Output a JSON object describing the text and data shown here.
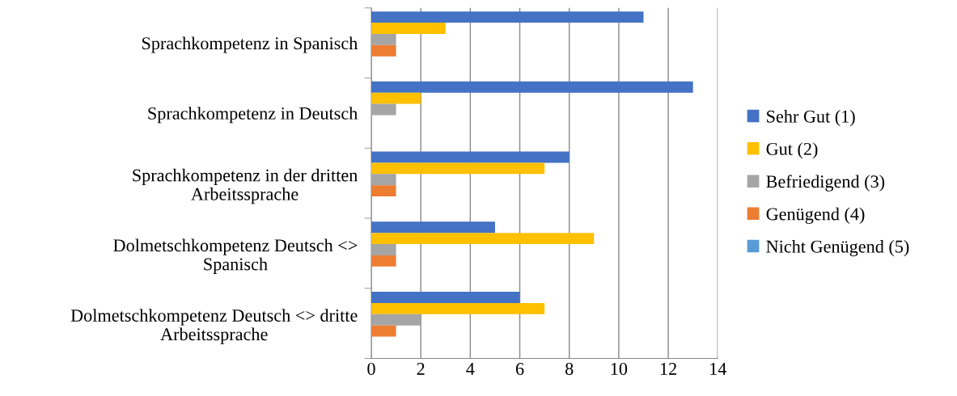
{
  "chart_data": {
    "type": "bar",
    "orientation": "horizontal",
    "categories": [
      "Sprachkompetenz in Spanisch",
      "Sprachkompetenz in Deutsch",
      "Sprachkompetenz in der dritten\nArbeitssprache",
      "Dolmetschkompetenz Deutsch <>\nSpanisch",
      "Dolmetschkompetenz Deutsch <> dritte\nArbeitssprache"
    ],
    "series": [
      {
        "name": "Sehr Gut (1)",
        "color": "#4472c4",
        "values": [
          11,
          13,
          8,
          5,
          6
        ]
      },
      {
        "name": "Gut (2)",
        "color": "#ffc000",
        "values": [
          3,
          2,
          7,
          9,
          7
        ]
      },
      {
        "name": "Befriedigend (3)",
        "color": "#a5a5a5",
        "values": [
          1,
          1,
          1,
          1,
          2
        ]
      },
      {
        "name": "Genügend (4)",
        "color": "#ed7d31",
        "values": [
          1,
          0,
          1,
          1,
          1
        ]
      },
      {
        "name": "Nicht Genügend (5)",
        "color": "#5b9bd5",
        "values": [
          0,
          0,
          0,
          0,
          0
        ]
      }
    ],
    "xlim": [
      0,
      14
    ],
    "xticks": [
      0,
      2,
      4,
      6,
      8,
      10,
      12,
      14
    ],
    "grid": "x",
    "legend": "right"
  }
}
